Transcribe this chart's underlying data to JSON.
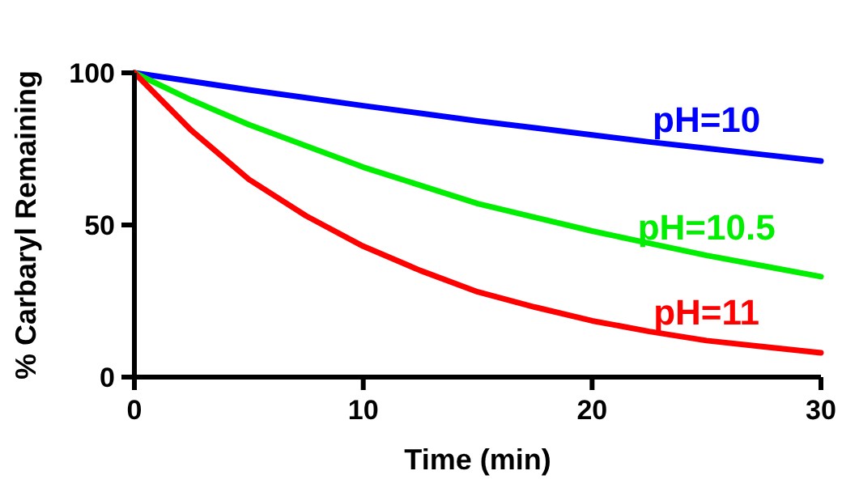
{
  "chart_data": {
    "type": "line",
    "xlabel": "Time (min)",
    "ylabel": "% Carbaryl Remaining",
    "x": [
      0,
      2.5,
      5,
      7.5,
      10,
      12.5,
      15,
      17.5,
      20,
      22.5,
      25,
      27.5,
      30
    ],
    "xlim": [
      0,
      30
    ],
    "xticks": [
      0,
      10,
      20,
      30
    ],
    "ylim": [
      0,
      100
    ],
    "yticks": [
      0,
      50,
      100
    ],
    "grid": false,
    "legend": false,
    "marker": "none",
    "line_style": "solid",
    "series": [
      {
        "name": "pH=10",
        "color": "#0000ff",
        "values": [
          100,
          97.2,
          94.4,
          91.8,
          89.2,
          86.7,
          84.2,
          81.9,
          79.6,
          77.3,
          75.2,
          73.1,
          71
        ]
      },
      {
        "name": "pH=10.5",
        "color": "#00ee00",
        "values": [
          100,
          91,
          83,
          76,
          69,
          63,
          57,
          52.5,
          48,
          44,
          40,
          36.5,
          33
        ]
      },
      {
        "name": "pH=11",
        "color": "#ff0000",
        "values": [
          100,
          81,
          65,
          53,
          43,
          35,
          28,
          23,
          18.5,
          15,
          12,
          10,
          8
        ]
      }
    ]
  }
}
